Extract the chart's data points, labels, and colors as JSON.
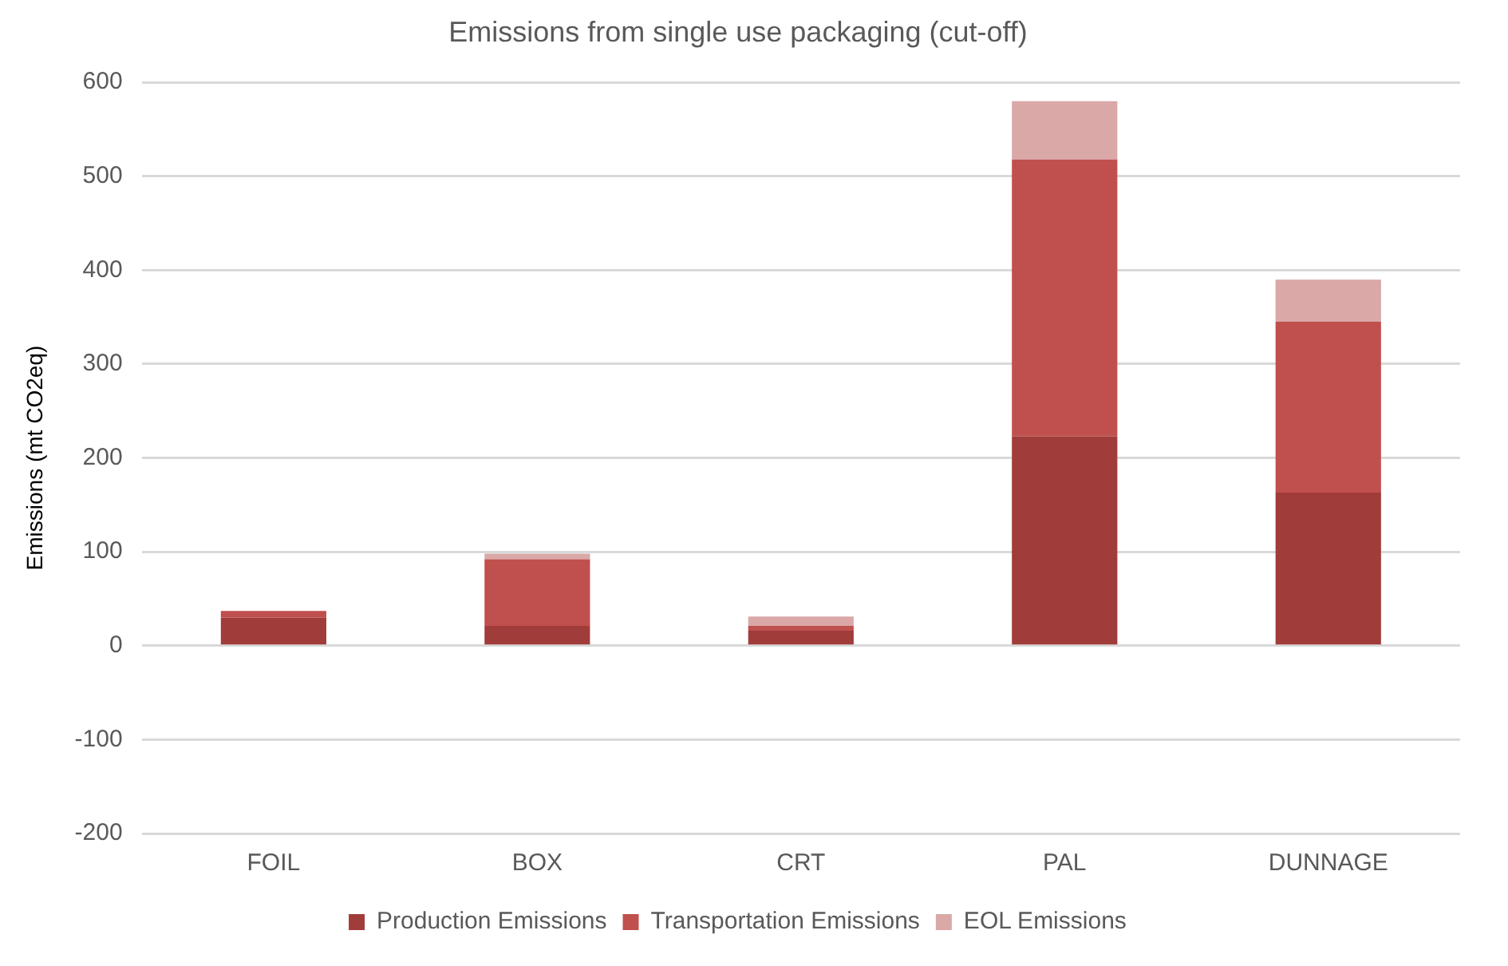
{
  "chart_data": {
    "type": "bar",
    "title": "Emissions from single use packaging (cut-off)",
    "ylabel": "Emissions (mt CO2eq)",
    "categories": [
      "FOIL",
      "BOX",
      "CRT",
      "PAL",
      "DUNNAGE"
    ],
    "stacked": true,
    "series": [
      {
        "name": "Production Emissions",
        "color": "#a03c3a",
        "values": [
          30,
          21,
          16,
          223,
          163
        ]
      },
      {
        "name": "Transportation Emissions",
        "color": "#c0504d",
        "values": [
          7,
          71,
          5,
          295,
          182
        ]
      },
      {
        "name": "EOL Emissions",
        "color": "#d9a8a7",
        "values": [
          null,
          6,
          10,
          62,
          45
        ]
      }
    ],
    "ylim": [
      -200,
      600
    ],
    "yticks": [
      -200,
      -100,
      0,
      100,
      200,
      300,
      400,
      500,
      600
    ],
    "grid": "y",
    "legend": "bottom"
  }
}
